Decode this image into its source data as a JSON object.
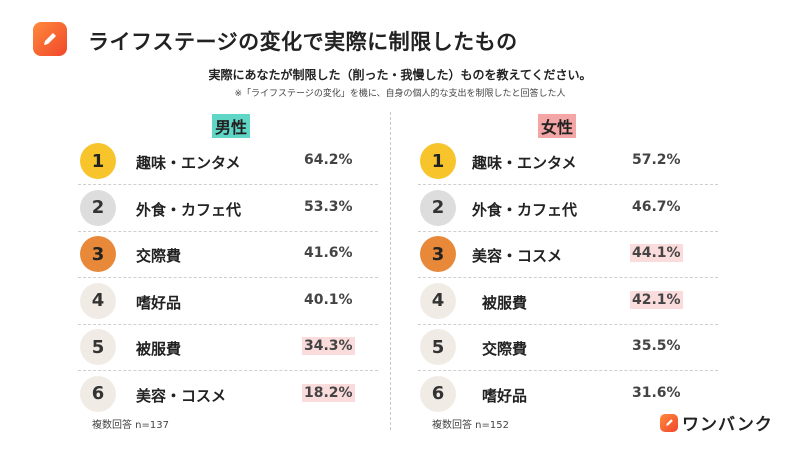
{
  "header": {
    "title": "ライフステージの変化で実際に制限したもの",
    "question": "実際にあなたが制限した（削った・我慢した）ものを教えてください。",
    "note": "※「ライフステージの変化」を機に、自身の個人的な支出を制限したと回答した人"
  },
  "chart_data": [
    {
      "type": "table",
      "title": "男性",
      "categories": [
        "趣味・エンタメ",
        "外食・カフェ代",
        "交際費",
        "嗜好品",
        "被服費",
        "美容・コスメ"
      ],
      "ranks": [
        "1",
        "2",
        "3",
        "4",
        "5",
        "6"
      ],
      "values": [
        64.2,
        53.3,
        41.6,
        40.1,
        34.3,
        18.2
      ],
      "value_labels": [
        "64.2%",
        "53.3%",
        "41.6%",
        "40.1%",
        "34.3%",
        "18.2%"
      ],
      "highlighted": [
        false,
        false,
        false,
        false,
        true,
        true
      ],
      "sample_label": "複数回答 n=137"
    },
    {
      "type": "table",
      "title": "女性",
      "categories": [
        "趣味・エンタメ",
        "外食・カフェ代",
        "美容・コスメ",
        "被服費",
        "交際費",
        "嗜好品"
      ],
      "ranks": [
        "1",
        "2",
        "3",
        "4",
        "5",
        "6"
      ],
      "values": [
        57.2,
        46.7,
        44.1,
        42.1,
        35.5,
        31.6
      ],
      "value_labels": [
        "57.2%",
        "46.7%",
        "44.1%",
        "42.1%",
        "35.5%",
        "31.6%"
      ],
      "highlighted": [
        false,
        false,
        true,
        true,
        false,
        false
      ],
      "sample_label": "複数回答 n=152"
    }
  ],
  "brand": {
    "name": "ワンバンク"
  },
  "colors": {
    "gold": "#f7c52b",
    "silver": "#dddddd",
    "bronze": "#e8893a",
    "male_head": "#5fd6c6",
    "female_head": "#f4a6a6",
    "highlight": "#fbdcdc"
  },
  "icons": {
    "logo": "pencil-icon"
  }
}
